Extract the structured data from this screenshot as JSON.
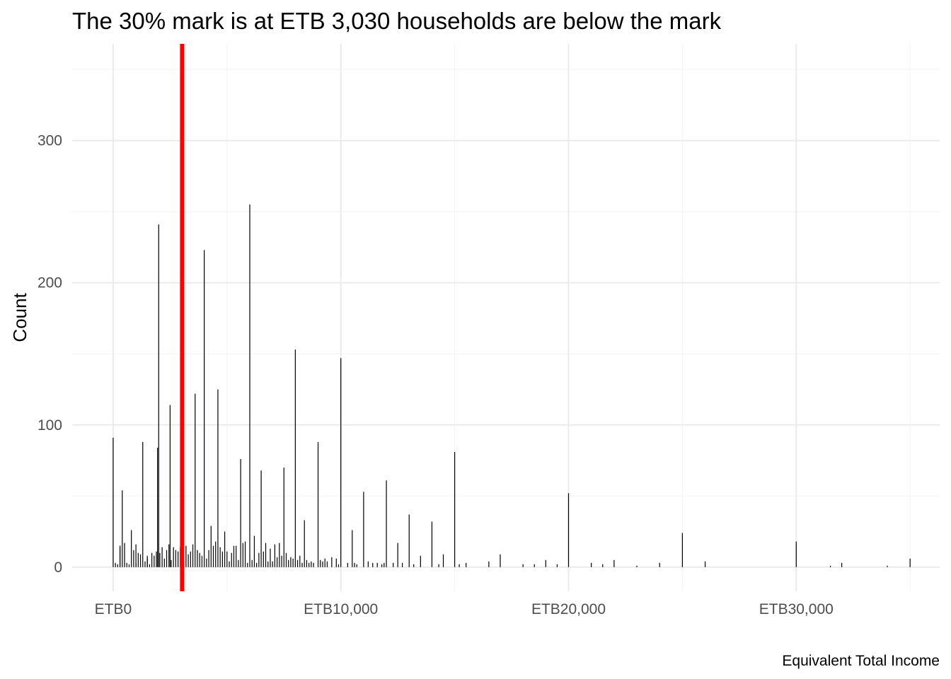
{
  "chart_data": {
    "type": "bar",
    "title": "The 30% mark is at ETB 3,030 households are below the mark",
    "xlabel": "",
    "ylabel": "Count",
    "caption": "Equivalent Total Income",
    "xlim": [
      -1800,
      36300
    ],
    "ylim": [
      -17,
      368
    ],
    "x_ticks": [
      0,
      10000,
      20000,
      30000
    ],
    "x_tick_labels": [
      "ETB0",
      "ETB10,000",
      "ETB20,000",
      "ETB30,000"
    ],
    "y_ticks": [
      0,
      100,
      200,
      300
    ],
    "y_tick_labels": [
      "0",
      "100",
      "200",
      "300"
    ],
    "grid": true,
    "legend": "none",
    "threshold": {
      "x": 3030,
      "color": "#ff0000"
    },
    "bar_color": "#000000",
    "bars": [
      {
        "x": 0,
        "y": 91
      },
      {
        "x": 100,
        "y": 3
      },
      {
        "x": 200,
        "y": 2
      },
      {
        "x": 300,
        "y": 15
      },
      {
        "x": 300,
        "y": 15
      },
      {
        "x": 400,
        "y": 54
      },
      {
        "x": 500,
        "y": 17
      },
      {
        "x": 600,
        "y": 3
      },
      {
        "x": 700,
        "y": 2
      },
      {
        "x": 800,
        "y": 26
      },
      {
        "x": 900,
        "y": 12
      },
      {
        "x": 1000,
        "y": 3
      },
      {
        "x": 1200,
        "y": 9
      },
      {
        "x": 1300,
        "y": 88
      },
      {
        "x": 1400,
        "y": 4
      },
      {
        "x": 1500,
        "y": 8
      },
      {
        "x": 1600,
        "y": 2
      },
      {
        "x": 1700,
        "y": 10
      },
      {
        "x": 1500,
        "y": 6
      },
      {
        "x": 1000,
        "y": 16
      },
      {
        "x": 1100,
        "y": 10
      },
      {
        "x": 1800,
        "y": 8
      },
      {
        "x": 1900,
        "y": 11
      },
      {
        "x": 1950,
        "y": 84
      },
      {
        "x": 2050,
        "y": 10
      },
      {
        "x": 2150,
        "y": 14
      },
      {
        "x": 2250,
        "y": 6
      },
      {
        "x": 2350,
        "y": 12
      },
      {
        "x": 2000,
        "y": 241
      },
      {
        "x": 2450,
        "y": 16
      },
      {
        "x": 2550,
        "y": 5
      },
      {
        "x": 2650,
        "y": 14
      },
      {
        "x": 2500,
        "y": 114
      },
      {
        "x": 2750,
        "y": 12
      },
      {
        "x": 2850,
        "y": 11
      },
      {
        "x": 2950,
        "y": 14
      },
      {
        "x": 3100,
        "y": 4
      },
      {
        "x": 3200,
        "y": 15
      },
      {
        "x": 3300,
        "y": 9
      },
      {
        "x": 3400,
        "y": 11
      },
      {
        "x": 3500,
        "y": 16
      },
      {
        "x": 3600,
        "y": 122
      },
      {
        "x": 3700,
        "y": 12
      },
      {
        "x": 3800,
        "y": 10
      },
      {
        "x": 3900,
        "y": 8
      },
      {
        "x": 4000,
        "y": 223
      },
      {
        "x": 4100,
        "y": 6
      },
      {
        "x": 4200,
        "y": 12
      },
      {
        "x": 4300,
        "y": 29
      },
      {
        "x": 4400,
        "y": 15
      },
      {
        "x": 4500,
        "y": 18
      },
      {
        "x": 4600,
        "y": 125
      },
      {
        "x": 4700,
        "y": 14
      },
      {
        "x": 4800,
        "y": 11
      },
      {
        "x": 4900,
        "y": 25
      },
      {
        "x": 5000,
        "y": 11
      },
      {
        "x": 5100,
        "y": 4
      },
      {
        "x": 5200,
        "y": 10
      },
      {
        "x": 5300,
        "y": 15
      },
      {
        "x": 5400,
        "y": 15
      },
      {
        "x": 5500,
        "y": 5
      },
      {
        "x": 5600,
        "y": 76
      },
      {
        "x": 5700,
        "y": 17
      },
      {
        "x": 5800,
        "y": 18
      },
      {
        "x": 5900,
        "y": 3
      },
      {
        "x": 6000,
        "y": 255
      },
      {
        "x": 6100,
        "y": 5
      },
      {
        "x": 6200,
        "y": 22
      },
      {
        "x": 6300,
        "y": 3
      },
      {
        "x": 6400,
        "y": 10
      },
      {
        "x": 6500,
        "y": 68
      },
      {
        "x": 6600,
        "y": 11
      },
      {
        "x": 6700,
        "y": 17
      },
      {
        "x": 6800,
        "y": 4
      },
      {
        "x": 6900,
        "y": 13
      },
      {
        "x": 7000,
        "y": 4
      },
      {
        "x": 7100,
        "y": 16
      },
      {
        "x": 7200,
        "y": 7
      },
      {
        "x": 7300,
        "y": 17
      },
      {
        "x": 7400,
        "y": 8
      },
      {
        "x": 7500,
        "y": 70
      },
      {
        "x": 7600,
        "y": 10
      },
      {
        "x": 7700,
        "y": 5
      },
      {
        "x": 7800,
        "y": 7
      },
      {
        "x": 7900,
        "y": 6
      },
      {
        "x": 8000,
        "y": 153
      },
      {
        "x": 8100,
        "y": 5
      },
      {
        "x": 8200,
        "y": 8
      },
      {
        "x": 8300,
        "y": 3
      },
      {
        "x": 8400,
        "y": 33
      },
      {
        "x": 8500,
        "y": 5
      },
      {
        "x": 8600,
        "y": 3
      },
      {
        "x": 8700,
        "y": 4
      },
      {
        "x": 8800,
        "y": 3
      },
      {
        "x": 9000,
        "y": 88
      },
      {
        "x": 9100,
        "y": 5
      },
      {
        "x": 9200,
        "y": 4
      },
      {
        "x": 9300,
        "y": 6
      },
      {
        "x": 9400,
        "y": 4
      },
      {
        "x": 9600,
        "y": 7
      },
      {
        "x": 9800,
        "y": 6
      },
      {
        "x": 9900,
        "y": 2
      },
      {
        "x": 10000,
        "y": 147
      },
      {
        "x": 10300,
        "y": 3
      },
      {
        "x": 10500,
        "y": 26
      },
      {
        "x": 10600,
        "y": 3
      },
      {
        "x": 10700,
        "y": 2
      },
      {
        "x": 11000,
        "y": 53
      },
      {
        "x": 11200,
        "y": 4
      },
      {
        "x": 11400,
        "y": 3
      },
      {
        "x": 11600,
        "y": 3
      },
      {
        "x": 11800,
        "y": 2
      },
      {
        "x": 11900,
        "y": 3
      },
      {
        "x": 12000,
        "y": 61
      },
      {
        "x": 12300,
        "y": 3
      },
      {
        "x": 12500,
        "y": 17
      },
      {
        "x": 12700,
        "y": 3
      },
      {
        "x": 13000,
        "y": 37
      },
      {
        "x": 13200,
        "y": 2
      },
      {
        "x": 13500,
        "y": 8
      },
      {
        "x": 14000,
        "y": 32
      },
      {
        "x": 14300,
        "y": 2
      },
      {
        "x": 14500,
        "y": 9
      },
      {
        "x": 15000,
        "y": 81
      },
      {
        "x": 15200,
        "y": 2
      },
      {
        "x": 15500,
        "y": 3
      },
      {
        "x": 16500,
        "y": 4
      },
      {
        "x": 17000,
        "y": 9
      },
      {
        "x": 18000,
        "y": 2
      },
      {
        "x": 18500,
        "y": 2
      },
      {
        "x": 19000,
        "y": 5
      },
      {
        "x": 19500,
        "y": 2
      },
      {
        "x": 20000,
        "y": 52
      },
      {
        "x": 21000,
        "y": 3
      },
      {
        "x": 21500,
        "y": 2
      },
      {
        "x": 22000,
        "y": 5
      },
      {
        "x": 23000,
        "y": 1
      },
      {
        "x": 24000,
        "y": 3
      },
      {
        "x": 25000,
        "y": 24
      },
      {
        "x": 26000,
        "y": 4
      },
      {
        "x": 30000,
        "y": 18
      },
      {
        "x": 31500,
        "y": 1
      },
      {
        "x": 32000,
        "y": 3
      },
      {
        "x": 34000,
        "y": 1
      },
      {
        "x": 35000,
        "y": 6
      }
    ]
  }
}
